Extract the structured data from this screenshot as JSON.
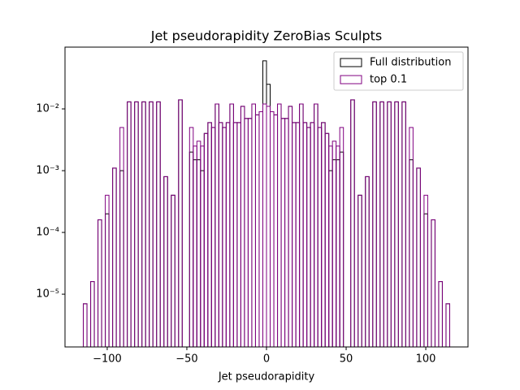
{
  "chart_data": {
    "type": "histogram",
    "title": "Jet pseudorapidity ZeroBias Sculpts",
    "x_label": "Jet pseudorapidity",
    "log_y": true,
    "legend": "upper right",
    "bins": [
      -115,
      -112.7,
      -110.4,
      -108.1,
      -105.8,
      -103.5,
      -101.2,
      -98.9,
      -96.6,
      -94.3,
      -92,
      -89.7,
      -87.4,
      -85.1,
      -82.8,
      -80.5,
      -78.2,
      -75.9,
      -73.6,
      -71.3,
      -69,
      -66.7,
      -64.4,
      -62.1,
      -59.8,
      -57.5,
      -55.2,
      -52.9,
      -50.6,
      -48.3,
      -46,
      -43.7,
      -41.4,
      -39.1,
      -36.8,
      -34.5,
      -32.2,
      -29.9,
      -27.6,
      -25.3,
      -23,
      -20.7,
      -18.4,
      -16.1,
      -13.8,
      -11.5,
      -9.2,
      -6.9,
      -4.6,
      -2.3,
      0,
      2.3,
      4.6,
      6.9,
      9.2,
      11.5,
      13.8,
      16.1,
      18.4,
      20.7,
      23,
      25.3,
      27.6,
      29.9,
      32.2,
      34.5,
      36.8,
      39.1,
      41.4,
      43.7,
      46,
      48.3,
      50.6,
      52.9,
      55.2,
      57.5,
      59.8,
      62.1,
      64.4,
      66.7,
      69,
      71.3,
      73.6,
      75.9,
      78.2,
      80.5,
      82.8,
      85.1,
      87.4,
      89.7,
      92,
      94.3,
      96.6,
      98.9,
      101.2,
      103.5,
      105.8,
      108.1,
      110.4,
      112.7,
      115
    ],
    "series": [
      {
        "name": "Full distribution",
        "color": "#000000",
        "values": [
          7e-06,
          0,
          1.6e-05,
          0,
          0.00016,
          0,
          0.0002,
          0,
          0.0011,
          0,
          0.001,
          0,
          0.013,
          0,
          0.013,
          0,
          0.013,
          0,
          0.013,
          0,
          0.013,
          0,
          0.0008,
          0,
          0.0004,
          0,
          0.014,
          0,
          0,
          0.002,
          0.0015,
          0.0015,
          0.001,
          0.004,
          0.006,
          0.005,
          0.012,
          0.006,
          0.005,
          0.006,
          0.012,
          0.006,
          0.006,
          0.011,
          0.007,
          0.007,
          0.012,
          0.008,
          0.009,
          0.06,
          0.025,
          0.009,
          0.008,
          0.012,
          0.007,
          0.007,
          0.011,
          0.006,
          0.006,
          0.012,
          0.006,
          0.005,
          0.006,
          0.012,
          0.005,
          0.006,
          0.004,
          0.001,
          0.0015,
          0.0015,
          0.002,
          0,
          0,
          0.014,
          0,
          0.0004,
          0,
          0.0008,
          0,
          0.013,
          0,
          0.013,
          0,
          0.013,
          0,
          0.013,
          0,
          0.013,
          0,
          0.0015,
          0,
          0.0011,
          0,
          0.0002,
          0,
          0.00016,
          0,
          1.6e-05,
          0,
          7e-06
        ]
      },
      {
        "name": "top 0.1",
        "color": "#800080",
        "values": [
          7e-06,
          0,
          1.6e-05,
          0,
          0.00016,
          0,
          0.0004,
          0,
          0.0011,
          0,
          0.005,
          0,
          0.013,
          0,
          0.013,
          0,
          0.013,
          0,
          0.013,
          0,
          0.013,
          0,
          0.0008,
          0,
          0.0004,
          0,
          0.014,
          0,
          0,
          0.005,
          0.0025,
          0.003,
          0.0025,
          0.004,
          0.006,
          0.005,
          0.012,
          0.006,
          0.005,
          0.006,
          0.012,
          0.006,
          0.006,
          0.011,
          0.007,
          0.007,
          0.012,
          0.008,
          0.009,
          0.012,
          0.011,
          0.009,
          0.008,
          0.012,
          0.007,
          0.007,
          0.011,
          0.006,
          0.006,
          0.012,
          0.006,
          0.005,
          0.006,
          0.012,
          0.005,
          0.006,
          0.004,
          0.0025,
          0.003,
          0.0025,
          0.005,
          0,
          0,
          0.014,
          0,
          0.0004,
          0,
          0.0008,
          0,
          0.013,
          0,
          0.013,
          0,
          0.013,
          0,
          0.013,
          0,
          0.013,
          0,
          0.005,
          0,
          0.0011,
          0,
          0.0004,
          0,
          0.00016,
          0,
          1.6e-05,
          0,
          7e-06
        ]
      }
    ],
    "xlim": [
      -126.5,
      126.5
    ],
    "xticks": [
      {
        "value": -100,
        "label": "−100"
      },
      {
        "value": -50,
        "label": "−50"
      },
      0,
      50,
      100
    ],
    "ylim": [
      1.4e-06,
      0.1
    ],
    "yticks": [
      {
        "value": 1e-05,
        "label": "10⁻⁵"
      },
      {
        "value": 0.0001,
        "label": "10⁻⁴"
      },
      {
        "value": 0.001,
        "label": "10⁻³"
      },
      {
        "value": 0.01,
        "label": "10⁻²"
      }
    ]
  }
}
